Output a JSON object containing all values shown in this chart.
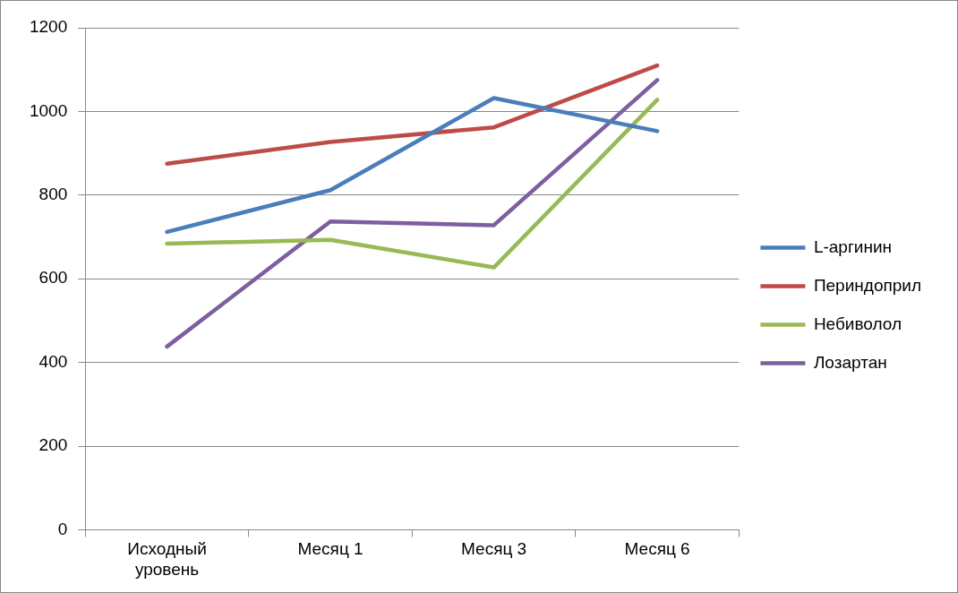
{
  "chart_data": {
    "type": "line",
    "categories": [
      "Исходный уровень",
      "Месяц 1",
      "Месяц 3",
      "Месяц 6"
    ],
    "series": [
      {
        "name": "L-аргинин",
        "color": "#4a7ebb",
        "values": [
          712,
          812,
          1032,
          953
        ]
      },
      {
        "name": "Периндоприл",
        "color": "#be4b48",
        "values": [
          875,
          927,
          962,
          1110
        ]
      },
      {
        "name": "Небиволол",
        "color": "#98b954",
        "values": [
          684,
          693,
          627,
          1028
        ]
      },
      {
        "name": "Лозартан",
        "color": "#7d5fa0",
        "values": [
          438,
          737,
          728,
          1075
        ]
      }
    ],
    "ylim": [
      0,
      1200
    ],
    "yticks": [
      0,
      200,
      400,
      600,
      800,
      1000,
      1200
    ],
    "grid": "y",
    "legend": "right",
    "marker": "none",
    "line_style": "solid"
  }
}
